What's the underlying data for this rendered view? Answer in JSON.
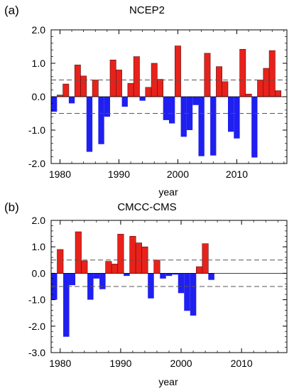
{
  "chart_data": [
    {
      "type": "bar",
      "panel_label": "(a)",
      "title": "NCEP2",
      "xlabel": "year",
      "ylabel": "",
      "ylim": [
        -2.0,
        2.0
      ],
      "xlim": [
        1978.5,
        2018.5
      ],
      "yticks": [
        "2.0",
        "1.0",
        "0.0",
        "-1.0",
        "-2.0"
      ],
      "ytick_values": [
        2.0,
        1.0,
        0.0,
        -1.0,
        -2.0
      ],
      "xticks": [
        "1980",
        "1990",
        "2000",
        "2010"
      ],
      "xtick_values": [
        1980,
        1990,
        2000,
        2010
      ],
      "reference_lines": [
        0.5,
        -0.5
      ],
      "positive_color": "#e8221b",
      "negative_color": "#1f1ff0",
      "x": [
        1979,
        1980,
        1981,
        1982,
        1983,
        1984,
        1985,
        1986,
        1987,
        1988,
        1989,
        1990,
        1991,
        1992,
        1993,
        1994,
        1995,
        1996,
        1997,
        1998,
        1999,
        2000,
        2001,
        2002,
        2003,
        2004,
        2005,
        2006,
        2007,
        2008,
        2009,
        2010,
        2011,
        2012,
        2013,
        2014,
        2015,
        2016,
        2017,
        2018
      ],
      "values": [
        -0.45,
        0.05,
        0.38,
        -0.2,
        0.95,
        0.62,
        -1.65,
        0.5,
        -1.42,
        -0.6,
        1.1,
        0.8,
        -0.3,
        0.4,
        1.2,
        -0.12,
        0.28,
        1.0,
        0.52,
        -0.7,
        -0.8,
        1.52,
        -1.2,
        -1.0,
        -0.25,
        -1.78,
        1.3,
        -1.76,
        0.9,
        0.45,
        -1.05,
        -1.25,
        1.42,
        0.08,
        -1.82,
        0.5,
        0.85,
        1.38,
        0.18,
        0.0
      ]
    },
    {
      "type": "bar",
      "panel_label": "(b)",
      "title": "CMCC-CMS",
      "xlabel": "year",
      "ylabel": "",
      "ylim": [
        -3.0,
        2.0
      ],
      "xlim": [
        1978.5,
        2017.5
      ],
      "yticks": [
        "2.0",
        "1.0",
        "0.0",
        "-1.0",
        "-2.0",
        "-3.0"
      ],
      "ytick_values": [
        2.0,
        1.0,
        0.0,
        -1.0,
        -2.0,
        -3.0
      ],
      "xticks": [
        "1980",
        "1990",
        "2000",
        "2010"
      ],
      "xtick_values": [
        1980,
        1990,
        2000,
        2010
      ],
      "reference_lines": [
        0.5,
        -0.5
      ],
      "positive_color": "#e8221b",
      "negative_color": "#1f1ff0",
      "x": [
        1979,
        1980,
        1981,
        1982,
        1983,
        1984,
        1985,
        1986,
        1987,
        1988,
        1989,
        1990,
        1991,
        1992,
        1993,
        1994,
        1995,
        1996,
        1997,
        1998,
        1999,
        2000,
        2001,
        2002,
        2003,
        2004,
        2005
      ],
      "values": [
        -1.0,
        0.9,
        -2.4,
        -0.45,
        1.57,
        0.47,
        -1.0,
        -0.2,
        -0.6,
        0.45,
        0.35,
        1.48,
        -0.1,
        1.4,
        1.15,
        1.0,
        -0.95,
        0.5,
        -0.2,
        -0.1,
        -0.05,
        -0.75,
        -1.42,
        -1.6,
        0.25,
        1.12,
        -0.25
      ]
    }
  ]
}
